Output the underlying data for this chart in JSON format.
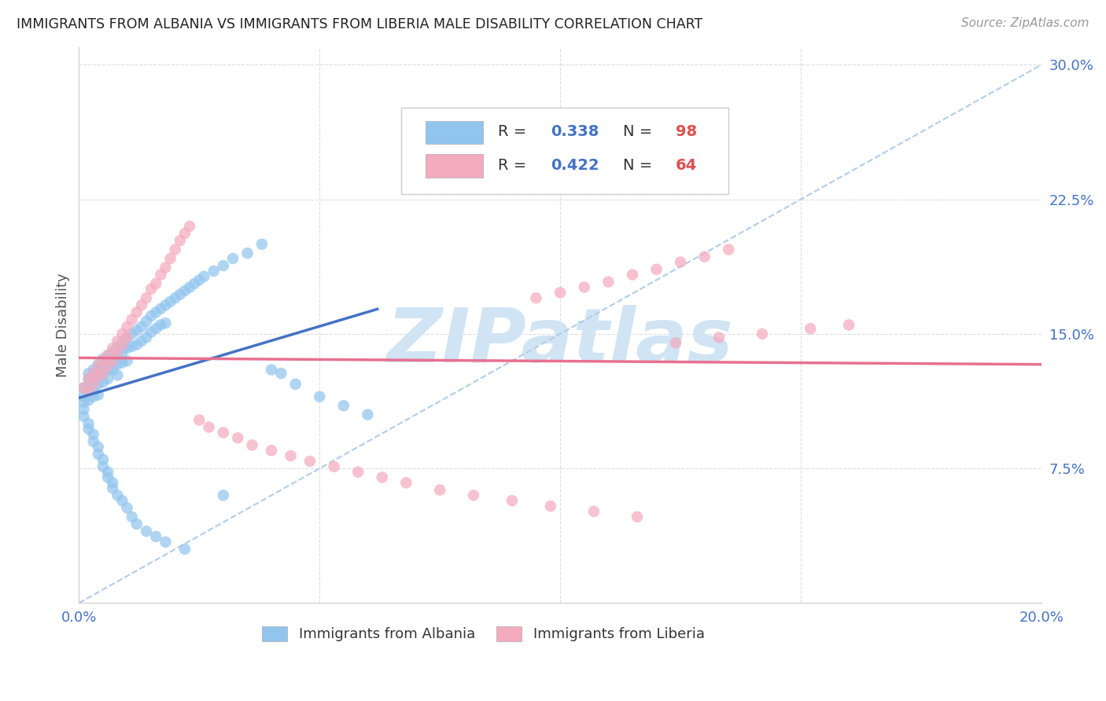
{
  "title": "IMMIGRANTS FROM ALBANIA VS IMMIGRANTS FROM LIBERIA MALE DISABILITY CORRELATION CHART",
  "source": "Source: ZipAtlas.com",
  "ylabel": "Male Disability",
  "albania_R": 0.338,
  "albania_N": 98,
  "liberia_R": 0.422,
  "liberia_N": 64,
  "albania_color": "#92C5EE",
  "liberia_color": "#F4ABBE",
  "albania_trend_color": "#4472C4",
  "liberia_trend_color": "#E87090",
  "dashed_line_color": "#B0CDE8",
  "watermark_color": "#D0E4F4",
  "xlim": [
    0.0,
    0.2
  ],
  "ylim": [
    0.0,
    0.31
  ],
  "yticks": [
    0.0,
    0.075,
    0.15,
    0.225,
    0.3
  ],
  "ytick_labels": [
    "",
    "7.5%",
    "15.0%",
    "22.5%",
    "30.0%"
  ],
  "xticks": [
    0.0,
    0.05,
    0.1,
    0.15,
    0.2
  ],
  "xtick_labels": [
    "0.0%",
    "",
    "",
    "",
    "20.0%"
  ],
  "albania_x": [
    0.001,
    0.001,
    0.001,
    0.002,
    0.002,
    0.002,
    0.002,
    0.002,
    0.003,
    0.003,
    0.003,
    0.003,
    0.003,
    0.004,
    0.004,
    0.004,
    0.004,
    0.004,
    0.005,
    0.005,
    0.005,
    0.005,
    0.006,
    0.006,
    0.006,
    0.006,
    0.007,
    0.007,
    0.007,
    0.008,
    0.008,
    0.008,
    0.008,
    0.009,
    0.009,
    0.009,
    0.01,
    0.01,
    0.01,
    0.011,
    0.011,
    0.012,
    0.012,
    0.013,
    0.013,
    0.014,
    0.014,
    0.015,
    0.015,
    0.016,
    0.016,
    0.017,
    0.017,
    0.018,
    0.018,
    0.019,
    0.02,
    0.021,
    0.022,
    0.023,
    0.024,
    0.025,
    0.026,
    0.028,
    0.03,
    0.032,
    0.035,
    0.038,
    0.04,
    0.042,
    0.045,
    0.05,
    0.055,
    0.06,
    0.001,
    0.001,
    0.002,
    0.002,
    0.003,
    0.003,
    0.004,
    0.004,
    0.005,
    0.005,
    0.006,
    0.006,
    0.007,
    0.007,
    0.008,
    0.009,
    0.01,
    0.011,
    0.012,
    0.014,
    0.016,
    0.018,
    0.022,
    0.03
  ],
  "albania_y": [
    0.12,
    0.115,
    0.112,
    0.128,
    0.125,
    0.122,
    0.118,
    0.113,
    0.13,
    0.127,
    0.124,
    0.12,
    0.115,
    0.133,
    0.13,
    0.126,
    0.122,
    0.116,
    0.136,
    0.132,
    0.128,
    0.123,
    0.138,
    0.135,
    0.13,
    0.125,
    0.14,
    0.136,
    0.13,
    0.143,
    0.138,
    0.133,
    0.127,
    0.145,
    0.14,
    0.134,
    0.148,
    0.142,
    0.135,
    0.15,
    0.143,
    0.152,
    0.144,
    0.154,
    0.146,
    0.157,
    0.148,
    0.16,
    0.151,
    0.162,
    0.153,
    0.164,
    0.155,
    0.166,
    0.156,
    0.168,
    0.17,
    0.172,
    0.174,
    0.176,
    0.178,
    0.18,
    0.182,
    0.185,
    0.188,
    0.192,
    0.195,
    0.2,
    0.13,
    0.128,
    0.122,
    0.115,
    0.11,
    0.105,
    0.108,
    0.104,
    0.1,
    0.097,
    0.094,
    0.09,
    0.087,
    0.083,
    0.08,
    0.076,
    0.073,
    0.07,
    0.067,
    0.064,
    0.06,
    0.057,
    0.053,
    0.048,
    0.044,
    0.04,
    0.037,
    0.034,
    0.03,
    0.06
  ],
  "liberia_x": [
    0.001,
    0.002,
    0.002,
    0.003,
    0.003,
    0.004,
    0.004,
    0.005,
    0.005,
    0.006,
    0.006,
    0.007,
    0.007,
    0.008,
    0.008,
    0.009,
    0.009,
    0.01,
    0.01,
    0.011,
    0.012,
    0.013,
    0.014,
    0.015,
    0.016,
    0.017,
    0.018,
    0.019,
    0.02,
    0.021,
    0.022,
    0.023,
    0.025,
    0.027,
    0.03,
    0.033,
    0.036,
    0.04,
    0.044,
    0.048,
    0.053,
    0.058,
    0.063,
    0.068,
    0.075,
    0.082,
    0.09,
    0.098,
    0.107,
    0.116,
    0.124,
    0.133,
    0.142,
    0.152,
    0.16,
    0.095,
    0.1,
    0.105,
    0.11,
    0.115,
    0.12,
    0.125,
    0.13,
    0.135
  ],
  "liberia_y": [
    0.12,
    0.125,
    0.118,
    0.128,
    0.122,
    0.132,
    0.126,
    0.135,
    0.128,
    0.138,
    0.132,
    0.142,
    0.135,
    0.146,
    0.14,
    0.15,
    0.144,
    0.154,
    0.148,
    0.158,
    0.162,
    0.166,
    0.17,
    0.175,
    0.178,
    0.183,
    0.187,
    0.192,
    0.197,
    0.202,
    0.206,
    0.21,
    0.102,
    0.098,
    0.095,
    0.092,
    0.088,
    0.085,
    0.082,
    0.079,
    0.076,
    0.073,
    0.07,
    0.067,
    0.063,
    0.06,
    0.057,
    0.054,
    0.051,
    0.048,
    0.145,
    0.148,
    0.15,
    0.153,
    0.155,
    0.17,
    0.173,
    0.176,
    0.179,
    0.183,
    0.186,
    0.19,
    0.193,
    0.197
  ]
}
